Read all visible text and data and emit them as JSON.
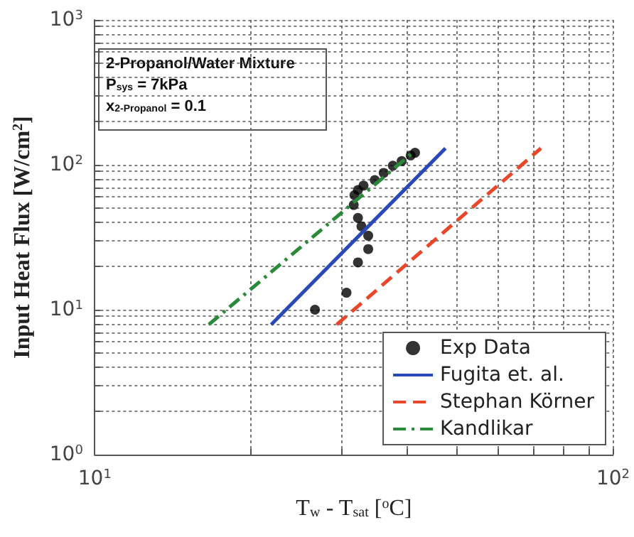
{
  "chart_data": {
    "type": "line",
    "xlabel": "T$_{w}$ - T$_{sat}$ [$^{o}$C]",
    "ylabel": "Input Heat Flux [W/cm$^{2}$]",
    "annotations": [
      "2-Propanol/Water Mixture",
      "P$_{sys}$ = 7kPa",
      "x$_{2-Propanol}$ = 0.1"
    ],
    "log": "xy",
    "xlim": [
      10,
      100
    ],
    "xticks": [
      {
        "value": 10,
        "label": "10$^{1}$"
      },
      {
        "value": 100,
        "label": "10$^{2}$"
      }
    ],
    "ylim": [
      1,
      1000
    ],
    "yticks": [
      {
        "value": 1,
        "label": "10$^{0}$"
      },
      {
        "value": 10,
        "label": "10$^{1}$"
      },
      {
        "value": 100,
        "label": "10$^{2}$"
      },
      {
        "value": 1000,
        "label": "10$^{3}$"
      }
    ],
    "grid": true,
    "legend": "bottom right",
    "series": [
      {
        "name": "Exp Data",
        "type": "scatter",
        "marker": "circle",
        "color": "#000000",
        "x": [
          26.6,
          30.6,
          32.2,
          33.7,
          33.7,
          32.7,
          32.2,
          31.6,
          31.7,
          32.2,
          33,
          34.7,
          36.1,
          37.6,
          39.1,
          40.7,
          41.5
        ],
        "values": [
          10,
          13.1,
          21.2,
          26.2,
          32.4,
          37.6,
          43,
          52.8,
          61.7,
          67,
          71.8,
          78.5,
          87.9,
          98.5,
          106,
          116,
          121
        ]
      },
      {
        "name": "Fugita et. al.",
        "marker": "none",
        "line_style": "solid",
        "color": "#2a48b8",
        "x": [
          21.9,
          47.5
        ],
        "values": [
          7.9,
          130
        ]
      },
      {
        "name": "Stephan Körner",
        "marker": "none",
        "line_style": "dashed",
        "color": "#e8472a",
        "x": [
          29.3,
          72.6
        ],
        "values": [
          7.9,
          130
        ]
      },
      {
        "name": "Kandlikar",
        "marker": "none",
        "line_style": "dashdot",
        "color": "#2a8a3a",
        "x": [
          16.6,
          41.5
        ],
        "values": [
          7.9,
          125
        ]
      }
    ]
  }
}
